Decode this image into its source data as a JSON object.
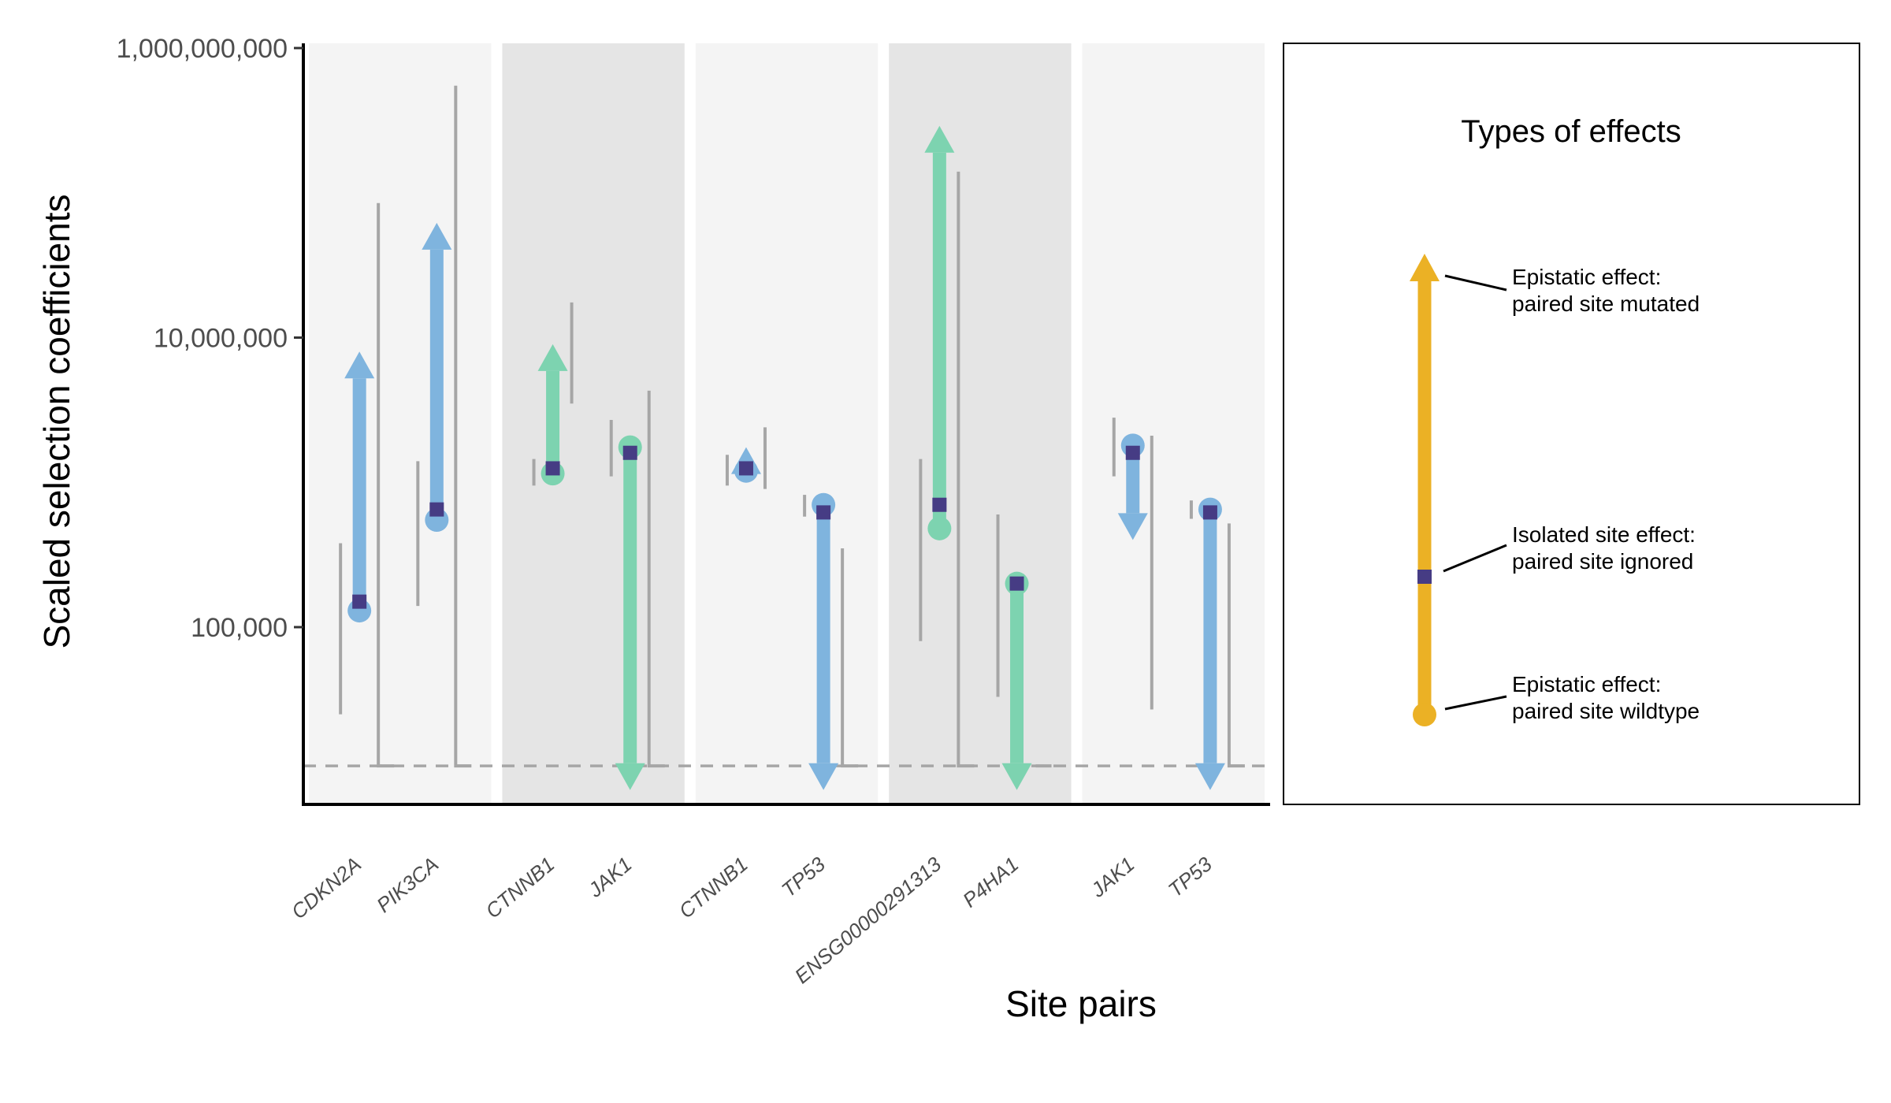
{
  "colors": {
    "blue": "#7fb4de",
    "green": "#7dd3b0",
    "marker": "#463c84",
    "gold": "#ebb125",
    "ci": "#a6a6a6",
    "panel_light": "#f4f4f4",
    "panel_dark": "#e5e5e5"
  },
  "legend": {
    "title": "Types of effects",
    "items": [
      {
        "line1": "Epistatic effect:",
        "line2": "paired site mutated"
      },
      {
        "line1": "Isolated site effect:",
        "line2": "paired site ignored"
      },
      {
        "line1": "Epistatic effect:",
        "line2": "paired site wildtype"
      }
    ]
  },
  "chart_data": {
    "type": "arrow-range",
    "xlabel": "Site pairs",
    "ylabel": "Scaled selection coefficients",
    "y_scale": "log10",
    "ylim": [
      10000,
      1000000000
    ],
    "y_ticks": [
      {
        "value": 100000,
        "label": "100,000"
      },
      {
        "value": 10000000,
        "label": "10,000,000"
      },
      {
        "value": 1000000000,
        "label": "1,000,000,000"
      }
    ],
    "reference_line": 11000,
    "groups": [
      {
        "color": "blue",
        "shade": "light",
        "sites": [
          {
            "gene": "CDKN2A",
            "isolated": 150000,
            "wildtype": 130000,
            "mutated": 8000000,
            "ci_left": [
              25000,
              380000
            ],
            "ci_right": [
              11000,
              85000000
            ]
          },
          {
            "gene": "PIK3CA",
            "isolated": 650000,
            "wildtype": 550000,
            "mutated": 62000000,
            "ci_left": [
              140000,
              1400000
            ],
            "ci_right": [
              11000,
              550000000
            ]
          }
        ]
      },
      {
        "color": "green",
        "shade": "dark",
        "sites": [
          {
            "gene": "CTNNB1",
            "isolated": 1250000,
            "wildtype": 1150000,
            "mutated": 9000000,
            "ci_left": [
              950000,
              1450000
            ],
            "ci_right": [
              3500000,
              17500000
            ]
          },
          {
            "gene": "JAK1",
            "isolated": 1600000,
            "wildtype": 1750000,
            "mutated": 7500,
            "ci_left": [
              1100000,
              2700000
            ],
            "ci_right": [
              11000,
              4300000
            ]
          }
        ]
      },
      {
        "color": "blue",
        "shade": "light",
        "sites": [
          {
            "gene": "CTNNB1",
            "isolated": 1250000,
            "wildtype": 1200000,
            "mutated": 1750000,
            "ci_left": [
              950000,
              1550000
            ],
            "ci_right": [
              900000,
              2400000
            ]
          },
          {
            "gene": "TP53",
            "isolated": 620000,
            "wildtype": 700000,
            "mutated": 7500,
            "ci_left": [
              580000,
              820000
            ],
            "ci_right": [
              11000,
              350000
            ]
          }
        ]
      },
      {
        "color": "green",
        "shade": "dark",
        "sites": [
          {
            "gene": "ENSG00000291313",
            "isolated": 700000,
            "wildtype": 480000,
            "mutated": 290000000,
            "ci_left": [
              80000,
              1450000
            ],
            "ci_right": [
              11000,
              140000000
            ]
          },
          {
            "gene": "P4HA1",
            "isolated": 200000,
            "wildtype": 200000,
            "mutated": 7500,
            "ci_left": [
              33000,
              600000
            ],
            "ci_right": [
              11000,
              11000
            ]
          }
        ]
      },
      {
        "color": "blue",
        "shade": "light",
        "sites": [
          {
            "gene": "JAK1",
            "isolated": 1600000,
            "wildtype": 1800000,
            "mutated": 400000,
            "ci_left": [
              1100000,
              2800000
            ],
            "ci_right": [
              27000,
              2100000
            ]
          },
          {
            "gene": "TP53",
            "isolated": 620000,
            "wildtype": 650000,
            "mutated": 7500,
            "ci_left": [
              560000,
              750000
            ],
            "ci_right": [
              11000,
              520000
            ]
          }
        ]
      }
    ]
  }
}
